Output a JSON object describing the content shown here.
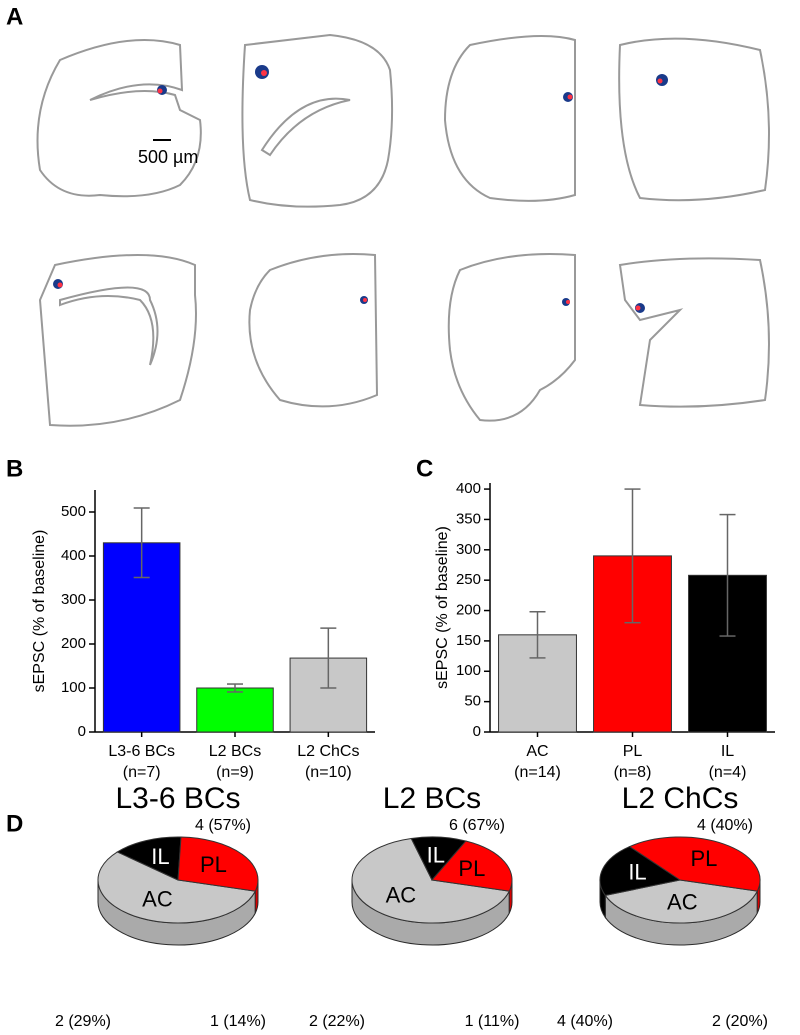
{
  "panel_labels": [
    "A",
    "B",
    "C",
    "D"
  ],
  "scale_bar": "500 µm",
  "chart_data": [
    {
      "type": "bar",
      "ylabel": "sEPSC (% of baseline)",
      "categories": [
        "L3-6 BCs",
        "L2 BCs",
        "L2 ChCs"
      ],
      "n_labels": [
        "(n=7)",
        "(n=9)",
        "(n=10)"
      ],
      "values": [
        430,
        100,
        168
      ],
      "errors": [
        79,
        9,
        68
      ],
      "colors": [
        "#0000ff",
        "#00ff00",
        "#c8c8c8"
      ],
      "ylim": [
        0,
        550
      ],
      "yticks": [
        0,
        100,
        200,
        300,
        400,
        500
      ]
    },
    {
      "type": "bar",
      "ylabel": "sEPSC (% of baseline)",
      "categories": [
        "AC",
        "PL",
        "IL"
      ],
      "n_labels": [
        "(n=14)",
        "(n=8)",
        "(n=4)"
      ],
      "values": [
        160,
        290,
        258
      ],
      "errors": [
        38,
        110,
        100
      ],
      "colors": [
        "#c8c8c8",
        "#ff0000",
        "#000000"
      ],
      "ylim": [
        0,
        410
      ],
      "yticks": [
        0,
        50,
        100,
        150,
        200,
        250,
        300,
        350,
        400
      ]
    },
    {
      "type": "pie",
      "title": "L3-6 BCs",
      "categories": [
        "AC",
        "IL",
        "PL"
      ],
      "values": [
        4,
        1,
        2
      ],
      "value_labels": [
        "4 (57%)",
        "1 (14%)",
        "2 (29%)"
      ],
      "colors": [
        "#c8c8c8",
        "#000000",
        "#ff0000"
      ]
    },
    {
      "type": "pie",
      "title": "L2 BCs",
      "categories": [
        "AC",
        "IL",
        "PL"
      ],
      "values": [
        6,
        1,
        2
      ],
      "value_labels": [
        "6 (67%)",
        "1 (11%)",
        "2 (22%)"
      ],
      "colors": [
        "#c8c8c8",
        "#000000",
        "#ff0000"
      ]
    },
    {
      "type": "pie",
      "title": "L2 ChCs",
      "categories": [
        "AC",
        "IL",
        "PL"
      ],
      "values": [
        4,
        2,
        4
      ],
      "value_labels": [
        "4 (40%)",
        "2 (20%)",
        "4 (40%)"
      ],
      "colors": [
        "#c8c8c8",
        "#000000",
        "#ff0000"
      ]
    }
  ]
}
